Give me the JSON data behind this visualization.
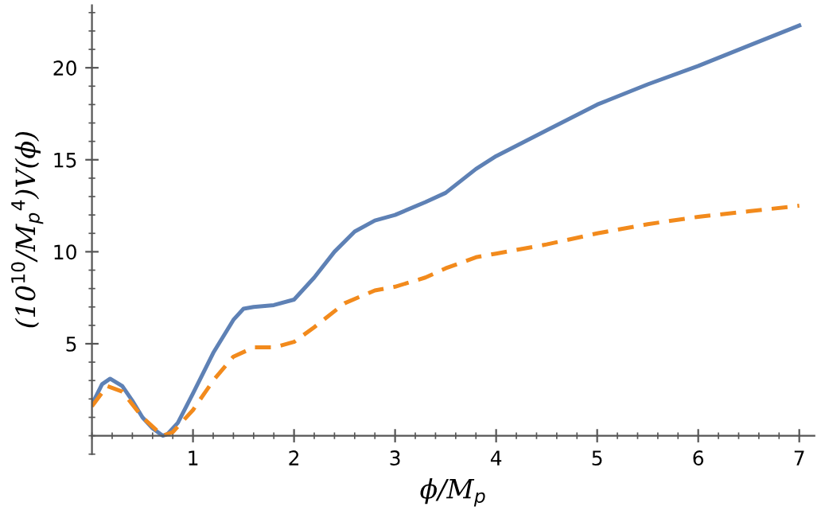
{
  "chart_data": {
    "type": "line",
    "xlabel": "ϕ/M$_{p}$",
    "ylabel": "(10$^{10}$/M$_{p}$$^{4}$)V(ϕ)",
    "xlim": [
      0,
      7.15
    ],
    "ylim": [
      -1,
      23.4
    ],
    "xticks": [
      1,
      2,
      3,
      4,
      5,
      6,
      7
    ],
    "yticks": [
      5,
      10,
      15,
      20
    ],
    "grid": false,
    "legend": false,
    "series": [
      {
        "color": "#5e81b5",
        "line_style": "solid",
        "x": [
          0,
          0.1,
          0.18,
          0.3,
          0.4,
          0.5,
          0.6,
          0.7,
          0.75,
          0.85,
          1.0,
          1.2,
          1.4,
          1.5,
          1.6,
          1.8,
          2.0,
          2.2,
          2.4,
          2.6,
          2.8,
          3.0,
          3.3,
          3.5,
          3.8,
          4.0,
          4.5,
          5.0,
          5.5,
          6.0,
          6.5,
          7.0
        ],
        "values": [
          1.7,
          2.8,
          3.1,
          2.7,
          1.9,
          1.0,
          0.4,
          0.0,
          0.1,
          0.7,
          2.3,
          4.5,
          6.3,
          6.9,
          7.0,
          7.1,
          7.4,
          8.6,
          10.0,
          11.1,
          11.7,
          12.0,
          12.7,
          13.2,
          14.5,
          15.2,
          16.6,
          18.0,
          19.1,
          20.1,
          21.2,
          22.3
        ]
      },
      {
        "color": "#f28a1c",
        "line_style": "dashed",
        "x": [
          0,
          0.15,
          0.3,
          0.5,
          0.7,
          0.8,
          1.0,
          1.2,
          1.4,
          1.6,
          1.8,
          2.0,
          2.2,
          2.5,
          2.8,
          3.0,
          3.3,
          3.5,
          3.8,
          4.0,
          4.5,
          5.0,
          5.5,
          6.0,
          6.5,
          7.0
        ],
        "values": [
          1.6,
          2.7,
          2.4,
          1.0,
          0.0,
          0.2,
          1.4,
          3.0,
          4.3,
          4.8,
          4.8,
          5.1,
          5.9,
          7.2,
          7.9,
          8.1,
          8.6,
          9.1,
          9.7,
          9.9,
          10.4,
          11.0,
          11.5,
          11.9,
          12.2,
          12.5
        ]
      }
    ]
  }
}
